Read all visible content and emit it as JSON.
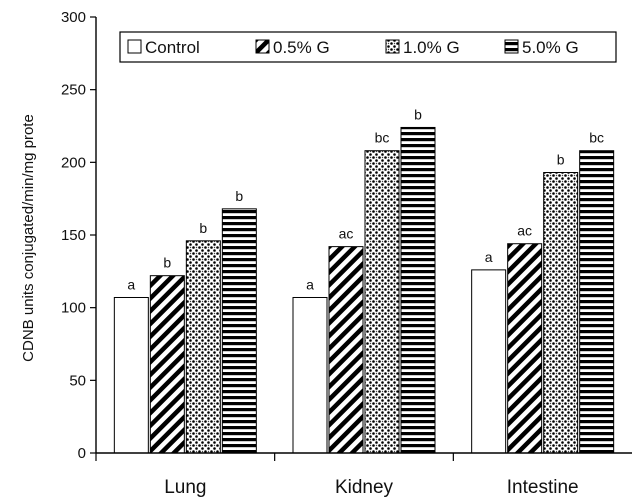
{
  "chart_data": {
    "type": "bar",
    "title": "",
    "xlabel": "",
    "ylabel": "CDNB units conjugated/min/mg prote",
    "ylim": [
      0,
      300
    ],
    "yticks": [
      0,
      50,
      100,
      150,
      200,
      250,
      300
    ],
    "ytick_labels": [
      "0",
      "50",
      "100",
      "150",
      "200",
      "250",
      "300"
    ],
    "grid": false,
    "legend_position": "top",
    "categories": [
      "Lung",
      "Kidney",
      "Intestine"
    ],
    "series": [
      {
        "name": "Control",
        "pattern": "empty",
        "values": [
          107,
          107,
          126
        ],
        "labels": [
          "a",
          "a",
          "a"
        ]
      },
      {
        "name": "0.5% G",
        "pattern": "diagonal",
        "values": [
          122,
          142,
          144
        ],
        "labels": [
          "b",
          "ac",
          "ac"
        ]
      },
      {
        "name": "1.0% G",
        "pattern": "dotted",
        "values": [
          146,
          208,
          193
        ],
        "labels": [
          "b",
          "bc",
          "b"
        ]
      },
      {
        "name": "5.0% G",
        "pattern": "horizontal",
        "values": [
          168,
          224,
          208
        ],
        "labels": [
          "b",
          "b",
          "bc"
        ]
      }
    ]
  }
}
